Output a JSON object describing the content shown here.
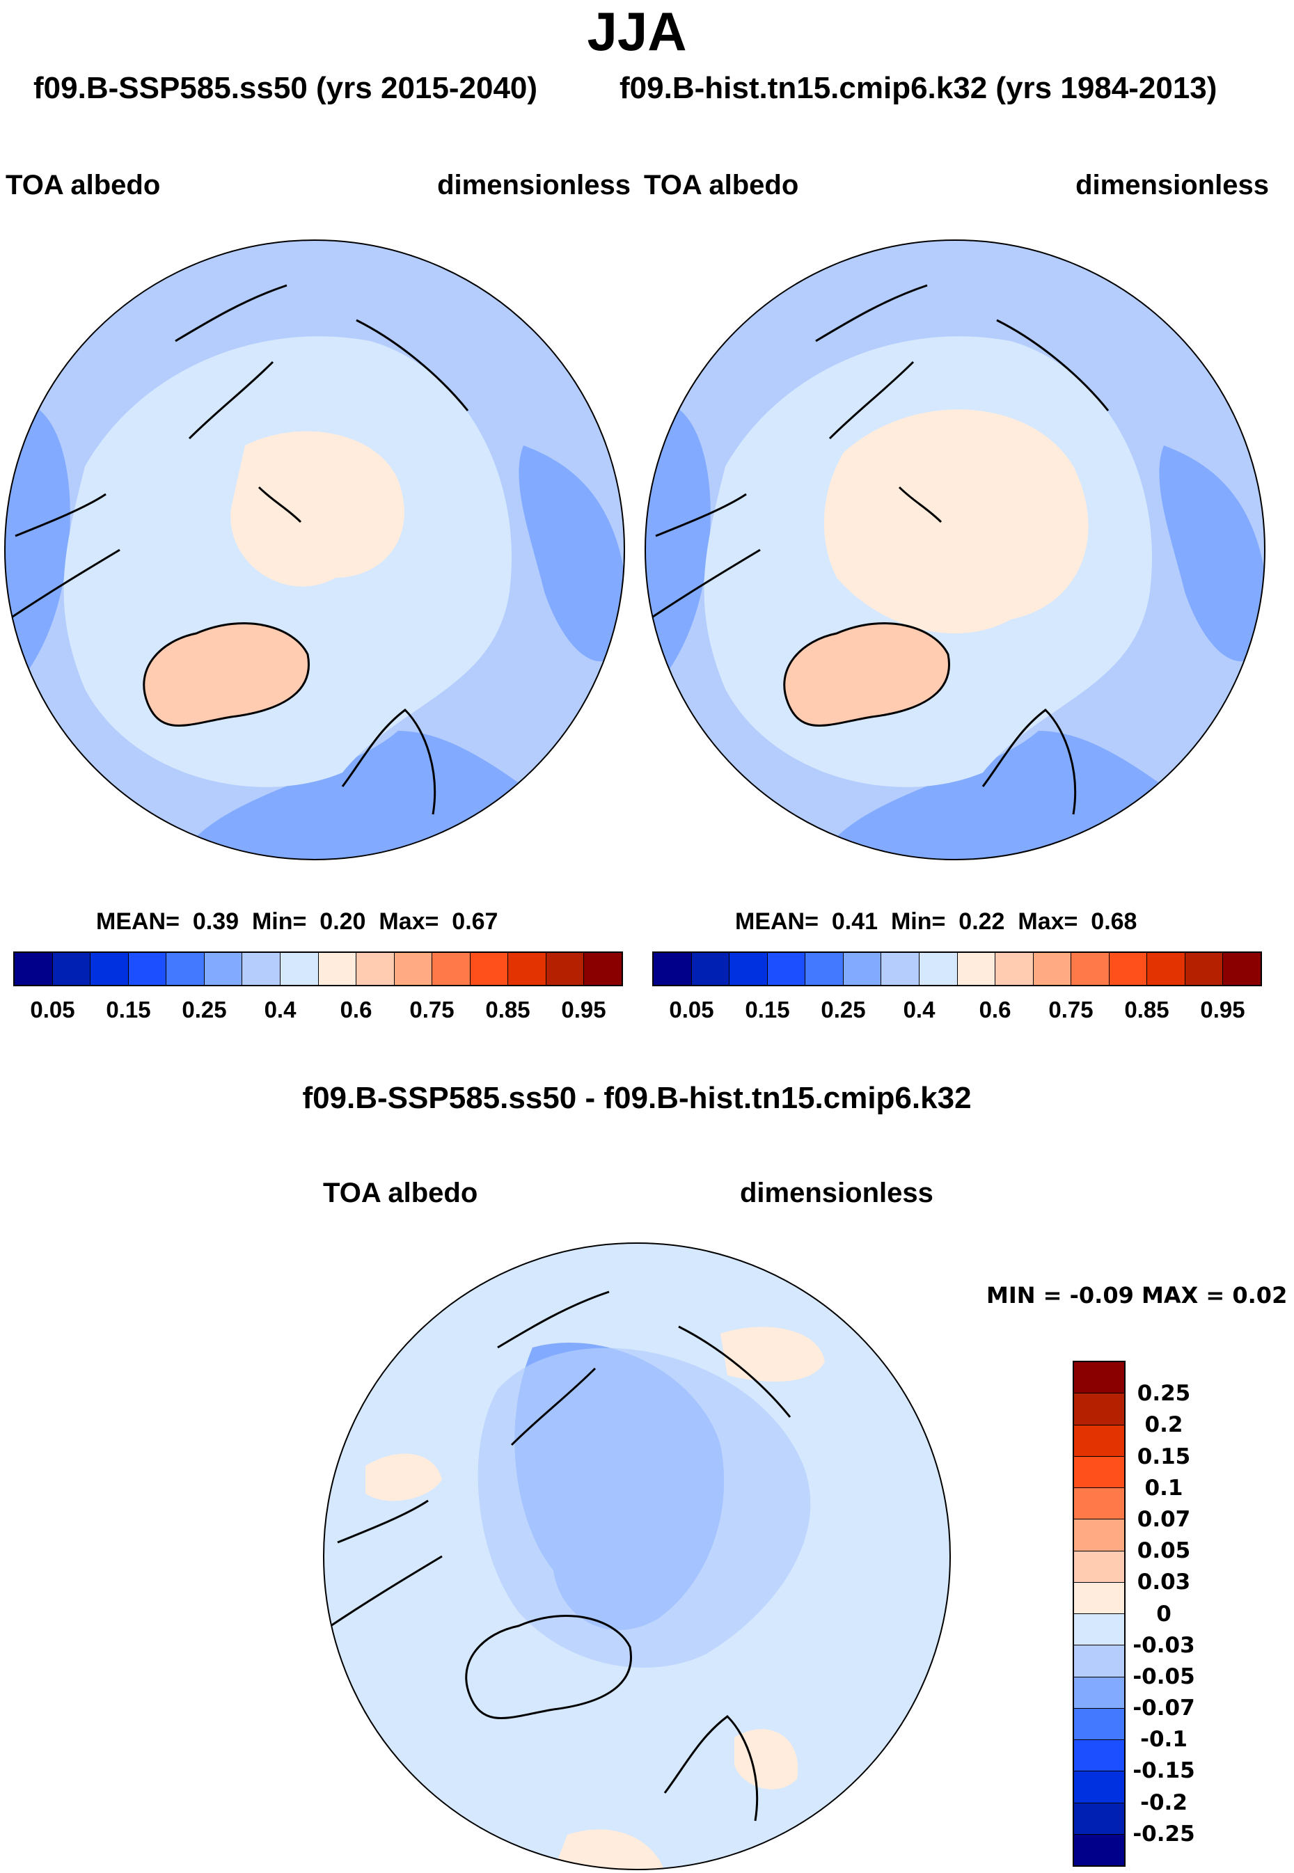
{
  "chart_data": [
    {
      "type": "heatmap",
      "projection": "polar-stereographic-north",
      "title": "JJA",
      "subtitle": "f09.B-SSP585.ss50 (yrs 2015-2040)",
      "left_label": "TOA albedo",
      "right_label": "dimensionless",
      "stats": {
        "mean_label": "MEAN=",
        "mean": "0.39",
        "min_label": "Min=",
        "min": "0.20",
        "max_label": "Max=",
        "max": "0.67"
      },
      "colorbar": {
        "orientation": "horizontal",
        "levels": [
          0.05,
          0.1,
          0.15,
          0.2,
          0.25,
          0.3,
          0.4,
          0.5,
          0.6,
          0.7,
          0.75,
          0.8,
          0.85,
          0.9,
          0.95
        ],
        "tick_labels": [
          "0.05",
          "0.15",
          "0.25",
          "0.4",
          "0.6",
          "0.75",
          "0.85",
          "0.95"
        ]
      }
    },
    {
      "type": "heatmap",
      "projection": "polar-stereographic-north",
      "subtitle": "f09.B-hist.tn15.cmip6.k32 (yrs 1984-2013)",
      "left_label": "TOA albedo",
      "right_label": "dimensionless",
      "stats": {
        "mean_label": "MEAN=",
        "mean": "0.41",
        "min_label": "Min=",
        "min": "0.22",
        "max_label": "Max=",
        "max": "0.68"
      },
      "colorbar": {
        "orientation": "horizontal",
        "levels": [
          0.05,
          0.1,
          0.15,
          0.2,
          0.25,
          0.3,
          0.4,
          0.5,
          0.6,
          0.7,
          0.75,
          0.8,
          0.85,
          0.9,
          0.95
        ],
        "tick_labels": [
          "0.05",
          "0.15",
          "0.25",
          "0.4",
          "0.6",
          "0.75",
          "0.85",
          "0.95"
        ]
      }
    },
    {
      "type": "heatmap",
      "projection": "polar-stereographic-north",
      "title": "f09.B-SSP585.ss50 - f09.B-hist.tn15.cmip6.k32",
      "left_label": "TOA albedo",
      "right_label": "dimensionless",
      "minmax": "MIN =  -0.09 MAX =   0.02",
      "colorbar": {
        "orientation": "vertical",
        "tick_labels": [
          "0.25",
          "0.2",
          "0.15",
          "0.1",
          "0.07",
          "0.05",
          "0.03",
          "0",
          "-0.03",
          "-0.05",
          "-0.07",
          "-0.1",
          "-0.15",
          "-0.2",
          "-0.25"
        ]
      }
    }
  ],
  "palette": [
    "#00008a",
    "#001fb3",
    "#0031e0",
    "#1c4fff",
    "#4279ff",
    "#82aaff",
    "#b4cdfd",
    "#d5e8fe",
    "#ffecdc",
    "#ffcbb1",
    "#ffaa82",
    "#ff7a48",
    "#ff501b",
    "#e23300",
    "#b52000",
    "#8a0000"
  ]
}
